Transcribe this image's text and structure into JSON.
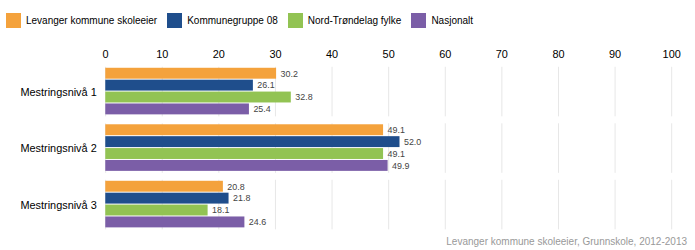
{
  "chart_data": {
    "type": "bar",
    "orientation": "horizontal",
    "categories": [
      "Mestringsnivå 1",
      "Mestringsnivå 2",
      "Mestringsnivå 3"
    ],
    "series": [
      {
        "name": "Levanger kommune skoleeier",
        "color": "#f4a23c",
        "values": [
          30.2,
          49.1,
          20.8
        ]
      },
      {
        "name": "Kommunegruppe 08",
        "color": "#1f4e8c",
        "values": [
          26.1,
          52.0,
          21.8
        ],
        "value_labels": [
          "26.1",
          "52.0",
          "21.8"
        ]
      },
      {
        "name": "Nord-Trøndelag fylke",
        "color": "#92c353",
        "values": [
          32.8,
          49.1,
          18.1
        ]
      },
      {
        "name": "Nasjonalt",
        "color": "#7b5ea7",
        "values": [
          25.4,
          49.9,
          24.6
        ]
      }
    ],
    "xlim": [
      0,
      100
    ],
    "xticks": [
      0,
      10,
      20,
      30,
      40,
      50,
      60,
      70,
      80,
      90,
      100
    ],
    "grid": true,
    "data_labels": true,
    "legend": "upper left",
    "caption": "Levanger kommune skoleeier, Grunnskole, 2012-2013"
  }
}
